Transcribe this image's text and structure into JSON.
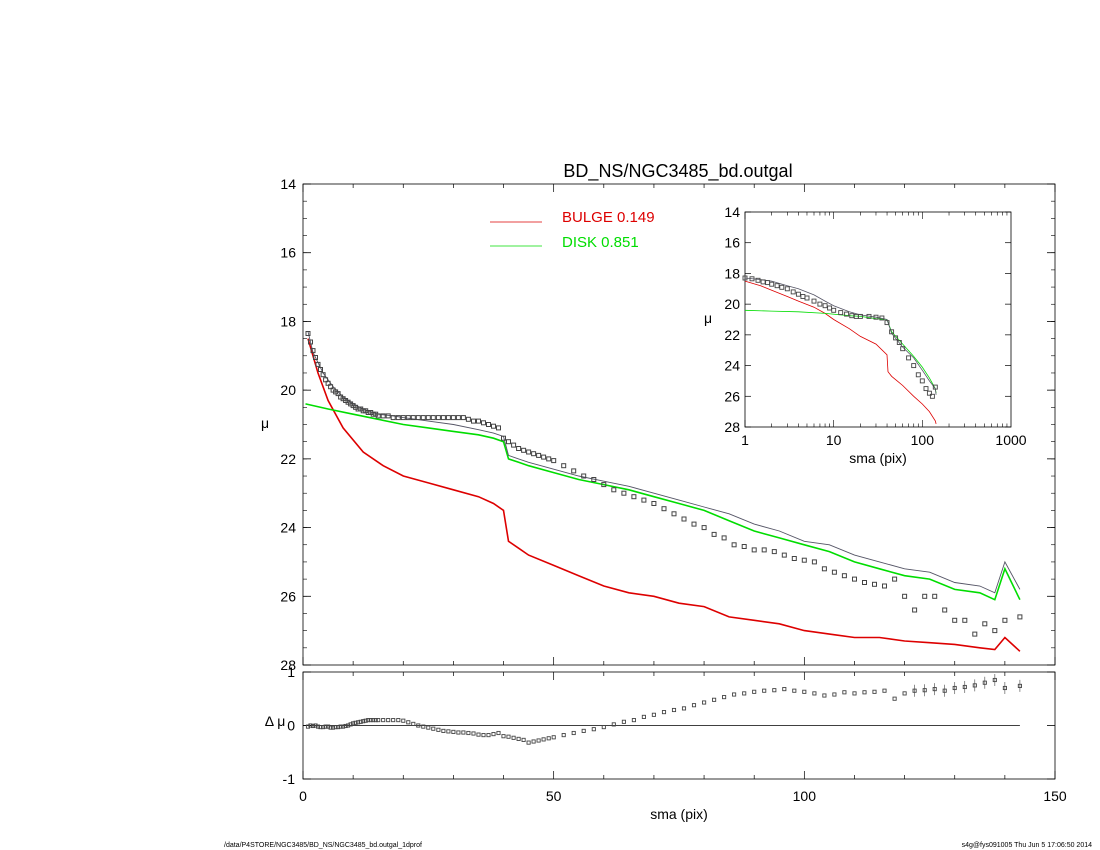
{
  "title": "BD_NS/NGC3485_bd.outgal",
  "footer_left": "/data/P4STORE/NGC3485/BD_NS/NGC3485_bd.outgal_1dprof",
  "footer_right": "s4g@fys091005  Thu Jun  5 17:06:50 2014",
  "colors": {
    "bulge": "#dd0000",
    "disk": "#00dd00",
    "total": "#555566",
    "data": "#444444"
  },
  "legend": [
    {
      "label": "BULGE  0.149",
      "color": "#dd0000"
    },
    {
      "label": "DISK  0.851",
      "color": "#00dd00"
    }
  ],
  "chart_data": [
    {
      "type": "line",
      "panel": "main",
      "xlim": [
        0,
        150
      ],
      "ylim": [
        28,
        14
      ],
      "ylabel": "μ",
      "yticks": [
        "14",
        "16",
        "18",
        "20",
        "22",
        "24",
        "26",
        "28"
      ],
      "series": [
        {
          "name": "BULGE  0.149",
          "x": [
            1,
            3,
            5,
            8,
            12,
            16,
            20,
            25,
            30,
            35,
            38,
            40,
            41,
            43,
            45,
            50,
            55,
            60,
            65,
            70,
            75,
            80,
            85,
            90,
            95,
            100,
            105,
            110,
            115,
            120,
            125,
            130,
            135,
            138,
            140,
            143
          ],
          "y": [
            18.5,
            19.5,
            20.3,
            21.1,
            21.8,
            22.2,
            22.5,
            22.7,
            22.9,
            23.1,
            23.3,
            23.5,
            24.4,
            24.6,
            24.8,
            25.1,
            25.4,
            25.7,
            25.9,
            26.0,
            26.2,
            26.3,
            26.6,
            26.7,
            26.8,
            27.0,
            27.1,
            27.2,
            27.2,
            27.3,
            27.35,
            27.4,
            27.5,
            27.55,
            27.2,
            27.6
          ]
        },
        {
          "name": "DISK  0.851",
          "x": [
            0.5,
            5,
            10,
            15,
            20,
            25,
            30,
            35,
            38,
            40,
            41,
            43,
            45,
            50,
            55,
            60,
            65,
            70,
            75,
            80,
            85,
            90,
            95,
            100,
            105,
            110,
            115,
            120,
            125,
            130,
            135,
            138,
            140,
            143
          ],
          "y": [
            20.4,
            20.55,
            20.7,
            20.85,
            21.0,
            21.1,
            21.2,
            21.3,
            21.4,
            21.5,
            22.0,
            22.1,
            22.2,
            22.4,
            22.6,
            22.75,
            22.9,
            23.1,
            23.3,
            23.5,
            23.8,
            24.1,
            24.3,
            24.5,
            24.7,
            25.0,
            25.2,
            25.4,
            25.5,
            25.8,
            25.9,
            26.1,
            25.2,
            26.1
          ]
        },
        {
          "name": "",
          "x": [
            1,
            2,
            4,
            6,
            8,
            10,
            12,
            15,
            18,
            20,
            25,
            30,
            35,
            38,
            40,
            41,
            43,
            45,
            50,
            55,
            60,
            65,
            70,
            75,
            80,
            85,
            90,
            95,
            100,
            105,
            110,
            115,
            120,
            125,
            130,
            135,
            138,
            140,
            143
          ],
          "y": [
            18.3,
            18.9,
            19.5,
            19.9,
            20.2,
            20.4,
            20.55,
            20.7,
            20.75,
            20.8,
            20.9,
            21.0,
            21.15,
            21.25,
            21.35,
            21.9,
            22.0,
            22.1,
            22.3,
            22.5,
            22.65,
            22.8,
            23.0,
            23.2,
            23.4,
            23.6,
            23.9,
            24.1,
            24.4,
            24.5,
            24.8,
            25.0,
            25.2,
            25.3,
            25.6,
            25.7,
            25.9,
            25.0,
            25.8
          ]
        }
      ],
      "points": {
        "x": [
          1,
          1.5,
          2,
          2.5,
          3,
          3.5,
          4,
          4.5,
          5,
          5.5,
          6,
          6.5,
          7,
          7.5,
          8,
          8.5,
          9,
          9.5,
          10,
          10.5,
          11,
          11.5,
          12,
          12.5,
          13,
          13.5,
          14,
          14.5,
          15,
          16,
          17,
          18,
          19,
          20,
          21,
          22,
          23,
          24,
          25,
          26,
          27,
          28,
          29,
          30,
          31,
          32,
          33,
          34,
          35,
          36,
          37,
          38,
          39,
          40,
          41,
          42,
          43,
          44,
          45,
          46,
          47,
          48,
          49,
          50,
          52,
          54,
          56,
          58,
          60,
          62,
          64,
          66,
          68,
          70,
          72,
          74,
          76,
          78,
          80,
          82,
          84,
          86,
          88,
          90,
          92,
          94,
          96,
          98,
          100,
          102,
          104,
          106,
          108,
          110,
          112,
          114,
          116,
          118,
          120,
          122,
          124,
          126,
          128,
          130,
          132,
          134,
          136,
          138,
          140,
          143
        ],
        "y": [
          18.35,
          18.6,
          18.85,
          19.05,
          19.25,
          19.4,
          19.55,
          19.7,
          19.8,
          19.9,
          20.0,
          20.05,
          20.1,
          20.2,
          20.25,
          20.3,
          20.35,
          20.4,
          20.45,
          20.5,
          20.55,
          20.55,
          20.6,
          20.6,
          20.65,
          20.65,
          20.7,
          20.7,
          20.75,
          20.75,
          20.75,
          20.8,
          20.8,
          20.8,
          20.8,
          20.8,
          20.8,
          20.8,
          20.8,
          20.8,
          20.8,
          20.8,
          20.8,
          20.8,
          20.8,
          20.8,
          20.85,
          20.9,
          20.9,
          20.95,
          21.0,
          21.05,
          21.1,
          21.4,
          21.5,
          21.6,
          21.7,
          21.75,
          21.8,
          21.85,
          21.9,
          21.95,
          22.0,
          22.05,
          22.2,
          22.35,
          22.5,
          22.6,
          22.75,
          22.9,
          23.0,
          23.1,
          23.2,
          23.3,
          23.45,
          23.6,
          23.75,
          23.9,
          24.0,
          24.2,
          24.3,
          24.5,
          24.55,
          24.65,
          24.65,
          24.7,
          24.8,
          24.9,
          24.95,
          25.0,
          25.2,
          25.3,
          25.4,
          25.5,
          25.6,
          25.65,
          25.7,
          25.5,
          26.0,
          26.4,
          26.0,
          26.0,
          26.4,
          26.7,
          26.7,
          27.1,
          26.8,
          27.0,
          26.7,
          26.6
        ]
      }
    },
    {
      "type": "scatter",
      "panel": "residual",
      "xlim": [
        0,
        150
      ],
      "ylim": [
        -1,
        1
      ],
      "xlabel": "sma (pix)",
      "ylabel": "Δ μ",
      "xticks": [
        "0",
        "50",
        "100",
        "150"
      ],
      "yticks": [
        "1",
        "0",
        "-1"
      ],
      "x": [
        1,
        1.5,
        2,
        2.5,
        3,
        3.5,
        4,
        4.5,
        5,
        5.5,
        6,
        6.5,
        7,
        7.5,
        8,
        8.5,
        9,
        9.5,
        10,
        10.5,
        11,
        11.5,
        12,
        12.5,
        13,
        13.5,
        14,
        14.5,
        15,
        16,
        17,
        18,
        19,
        20,
        21,
        22,
        23,
        24,
        25,
        26,
        27,
        28,
        29,
        30,
        31,
        32,
        33,
        34,
        35,
        36,
        37,
        38,
        39,
        40,
        41,
        42,
        43,
        44,
        45,
        46,
        47,
        48,
        49,
        50,
        52,
        54,
        56,
        58,
        60,
        62,
        64,
        66,
        68,
        70,
        72,
        74,
        76,
        78,
        80,
        82,
        84,
        86,
        88,
        90,
        92,
        94,
        96,
        98,
        100,
        102,
        104,
        106,
        108,
        110,
        112,
        114,
        116,
        118,
        120,
        122,
        124,
        126,
        128,
        130,
        132,
        134,
        136,
        138,
        140,
        143
      ],
      "y": [
        -0.02,
        0.0,
        -0.01,
        0.0,
        -0.02,
        -0.03,
        -0.03,
        -0.02,
        -0.02,
        -0.04,
        -0.04,
        -0.03,
        -0.03,
        -0.02,
        -0.02,
        -0.01,
        0.0,
        0.02,
        0.04,
        0.05,
        0.06,
        0.07,
        0.08,
        0.09,
        0.1,
        0.1,
        0.1,
        0.1,
        0.1,
        0.1,
        0.1,
        0.1,
        0.1,
        0.09,
        0.06,
        0.03,
        0.0,
        -0.02,
        -0.04,
        -0.06,
        -0.08,
        -0.1,
        -0.11,
        -0.12,
        -0.13,
        -0.13,
        -0.14,
        -0.15,
        -0.17,
        -0.18,
        -0.18,
        -0.16,
        -0.14,
        -0.2,
        -0.21,
        -0.23,
        -0.25,
        -0.27,
        -0.32,
        -0.3,
        -0.28,
        -0.26,
        -0.24,
        -0.22,
        -0.18,
        -0.14,
        -0.1,
        -0.07,
        -0.03,
        0.02,
        0.07,
        0.1,
        0.16,
        0.2,
        0.25,
        0.29,
        0.32,
        0.38,
        0.43,
        0.48,
        0.53,
        0.58,
        0.6,
        0.63,
        0.65,
        0.66,
        0.68,
        0.65,
        0.63,
        0.6,
        0.56,
        0.58,
        0.62,
        0.6,
        0.62,
        0.63,
        0.65,
        0.5,
        0.6,
        0.65,
        0.66,
        0.68,
        0.65,
        0.7,
        0.72,
        0.75,
        0.8,
        0.85,
        0.7,
        0.74
      ]
    },
    {
      "type": "line",
      "panel": "inset",
      "xscale": "log",
      "xlim": [
        1,
        1000
      ],
      "ylim": [
        28,
        14
      ],
      "xlabel": "sma (pix)",
      "ylabel": "μ",
      "xticks": [
        "1",
        "10",
        "100",
        "1000"
      ],
      "yticks": [
        "14",
        "16",
        "18",
        "20",
        "22",
        "24",
        "26",
        "28"
      ],
      "series": [
        {
          "name": "BULGE  0.149",
          "x": [
            1,
            1.5,
            2,
            3,
            4,
            6,
            8,
            10,
            15,
            20,
            30,
            40,
            41,
            45,
            60,
            80,
            100,
            120,
            140,
            143
          ],
          "y": [
            18.5,
            18.8,
            19.1,
            19.5,
            19.8,
            20.2,
            20.6,
            21.0,
            21.6,
            22.1,
            22.6,
            23.3,
            24.4,
            24.7,
            25.3,
            26.0,
            26.5,
            27.0,
            27.6,
            27.8
          ]
        },
        {
          "name": "DISK  0.851",
          "x": [
            1,
            2,
            4,
            8,
            15,
            20,
            30,
            40,
            45,
            60,
            80,
            100,
            120,
            140,
            143
          ],
          "y": [
            20.4,
            20.45,
            20.5,
            20.6,
            20.75,
            20.8,
            20.95,
            21.0,
            21.8,
            22.6,
            23.4,
            24.1,
            24.8,
            25.5,
            25.8
          ]
        },
        {
          "name": "",
          "x": [
            1,
            1.5,
            2,
            3,
            4,
            6,
            8,
            10,
            15,
            20,
            30,
            40,
            45,
            60,
            80,
            100,
            120,
            140,
            143
          ],
          "y": [
            18.3,
            18.4,
            18.5,
            18.8,
            19.0,
            19.4,
            19.8,
            20.1,
            20.5,
            20.7,
            20.85,
            21.0,
            21.9,
            22.8,
            23.5,
            24.3,
            25.0,
            25.5,
            25.9
          ]
        }
      ],
      "points": {
        "x": [
          1,
          1.2,
          1.4,
          1.6,
          1.8,
          2,
          2.3,
          2.6,
          3,
          3.5,
          4,
          4.5,
          5,
          6,
          7,
          8,
          9,
          10,
          12,
          14,
          16,
          18,
          20,
          25,
          30,
          35,
          40,
          45,
          50,
          55,
          60,
          70,
          80,
          90,
          100,
          110,
          120,
          130,
          140
        ],
        "y": [
          18.3,
          18.35,
          18.45,
          18.55,
          18.6,
          18.7,
          18.8,
          18.9,
          19.0,
          19.2,
          19.35,
          19.5,
          19.6,
          19.8,
          20.0,
          20.1,
          20.25,
          20.4,
          20.55,
          20.65,
          20.75,
          20.8,
          20.8,
          20.8,
          20.85,
          20.9,
          21.2,
          21.8,
          22.2,
          22.5,
          22.9,
          23.5,
          24.0,
          24.6,
          25.0,
          25.5,
          25.8,
          26.0,
          25.4
        ]
      }
    }
  ]
}
